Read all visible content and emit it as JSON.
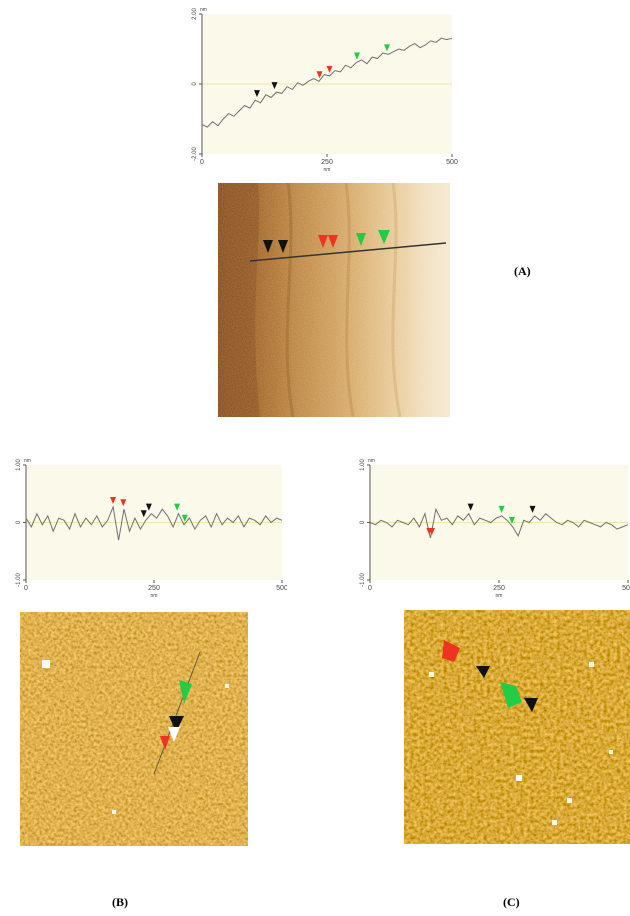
{
  "labels": {
    "a": "(A)",
    "b": "(B)",
    "c": "(C)"
  },
  "profiles": {
    "a": {
      "xticks": [
        "0",
        "250",
        "500"
      ],
      "xunit": "nm",
      "yticks": [
        "2.00",
        "0",
        "-2.00"
      ],
      "yunit": "nm",
      "trace": [
        -1.5,
        -1.6,
        -1.4,
        -1.55,
        -1.3,
        -1.1,
        -1.2,
        -1.0,
        -0.8,
        -0.9,
        -0.6,
        -0.7,
        -0.4,
        -0.5,
        -0.3,
        -0.35,
        -0.1,
        -0.2,
        0.05,
        -0.05,
        0.1,
        0.2,
        0.1,
        0.35,
        0.3,
        0.5,
        0.45,
        0.7,
        0.6,
        0.8,
        0.9,
        0.75,
        1.0,
        0.95,
        1.15,
        1.1,
        1.2,
        1.3,
        1.25,
        1.4,
        1.5,
        1.35,
        1.45,
        1.6,
        1.55,
        1.7,
        1.65,
        1.7
      ],
      "markers": [
        {
          "x": 0.22,
          "color": "black"
        },
        {
          "x": 0.29,
          "color": "black"
        },
        {
          "x": 0.47,
          "color": "red"
        },
        {
          "x": 0.51,
          "color": "red"
        },
        {
          "x": 0.62,
          "color": "green"
        },
        {
          "x": 0.74,
          "color": "green"
        }
      ]
    },
    "b": {
      "xticks": [
        "0",
        "250",
        "500"
      ],
      "xunit": "nm",
      "yticks": [
        "1.00",
        "0",
        "-1.00"
      ],
      "yunit": "nm",
      "trace": [
        0.1,
        -0.1,
        0.2,
        -0.05,
        0.15,
        -0.2,
        0.1,
        0.05,
        -0.15,
        0.2,
        -0.1,
        0.1,
        -0.05,
        0.15,
        -0.1,
        0.05,
        0.35,
        -0.4,
        0.3,
        -0.2,
        0.1,
        -0.15,
        0.05,
        0.2,
        0.1,
        0.3,
        0.15,
        -0.1,
        0.2,
        -0.05,
        0.1,
        -0.15,
        0.05,
        0.15,
        -0.1,
        0.2,
        -0.05,
        0.1,
        0.0,
        0.15,
        -0.1,
        0.1,
        0.05,
        -0.05,
        0.15,
        0.0,
        0.1,
        0.05
      ],
      "markers": [
        {
          "x": 0.34,
          "color": "red"
        },
        {
          "x": 0.38,
          "color": "red"
        },
        {
          "x": 0.46,
          "color": "black"
        },
        {
          "x": 0.48,
          "color": "black"
        },
        {
          "x": 0.59,
          "color": "green"
        },
        {
          "x": 0.62,
          "color": "green"
        }
      ]
    },
    "c": {
      "xticks": [
        "0",
        "250",
        "500"
      ],
      "xunit": "nm",
      "yticks": [
        "1.00",
        "0",
        "-1.00"
      ],
      "yunit": "nm",
      "trace": [
        0.0,
        -0.05,
        0.05,
        0.0,
        -0.1,
        0.05,
        0.0,
        -0.05,
        0.1,
        -0.1,
        0.2,
        -0.35,
        0.3,
        0.05,
        0.1,
        -0.05,
        0.15,
        0.05,
        0.2,
        -0.05,
        0.1,
        0.05,
        0.0,
        0.1,
        0.15,
        0.05,
        -0.1,
        -0.3,
        0.05,
        0.0,
        0.15,
        0.05,
        0.2,
        0.1,
        0.0,
        -0.05,
        0.05,
        0.0,
        -0.1,
        0.05,
        0.0,
        -0.05,
        -0.1,
        0.0,
        -0.05,
        -0.15,
        -0.1,
        -0.05
      ],
      "markers": [
        {
          "x": 0.23,
          "color": "red"
        },
        {
          "x": 0.24,
          "color": "red"
        },
        {
          "x": 0.39,
          "color": "black"
        },
        {
          "x": 0.51,
          "color": "green"
        },
        {
          "x": 0.55,
          "color": "green"
        },
        {
          "x": 0.63,
          "color": "black"
        }
      ]
    }
  },
  "colors": {
    "red": "#ee3322",
    "green": "#22cc44",
    "black": "#111111",
    "trace": "#707070",
    "profile_bg": "#fbf9ea"
  }
}
